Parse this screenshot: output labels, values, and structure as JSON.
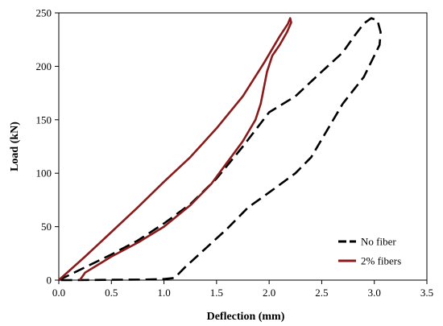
{
  "chart_data": {
    "type": "line",
    "title": "",
    "xlabel": "Deflection (mm)",
    "ylabel": "Load (kN)",
    "xlim": [
      0,
      3.5
    ],
    "ylim": [
      0,
      250
    ],
    "x_ticks": [
      "0.0",
      "0.5",
      "1.0",
      "1.5",
      "2.0",
      "2.5",
      "3.0",
      "3.5"
    ],
    "y_ticks": [
      "0",
      "50",
      "100",
      "150",
      "200",
      "250"
    ],
    "grid": false,
    "legend_position": "bottom-right",
    "series": [
      {
        "name": "No fiber",
        "color": "#000000",
        "style": "dashed",
        "points": [
          [
            0.0,
            0
          ],
          [
            0.25,
            12
          ],
          [
            0.5,
            24
          ],
          [
            0.75,
            37
          ],
          [
            1.0,
            53
          ],
          [
            1.25,
            71
          ],
          [
            1.5,
            95
          ],
          [
            1.75,
            125
          ],
          [
            2.0,
            157
          ],
          [
            2.25,
            172
          ],
          [
            2.5,
            195
          ],
          [
            2.7,
            213
          ],
          [
            2.8,
            227
          ],
          [
            2.9,
            240
          ],
          [
            2.97,
            245
          ],
          [
            3.03,
            243
          ],
          [
            3.06,
            232
          ],
          [
            3.05,
            220
          ],
          [
            2.9,
            190
          ],
          [
            2.7,
            165
          ],
          [
            2.55,
            140
          ],
          [
            2.4,
            115
          ],
          [
            2.25,
            100
          ],
          [
            2.0,
            82
          ],
          [
            1.8,
            68
          ],
          [
            1.6,
            48
          ],
          [
            1.4,
            30
          ],
          [
            1.2,
            12
          ],
          [
            1.1,
            2
          ],
          [
            1.0,
            1
          ],
          [
            0.8,
            0.5
          ],
          [
            0.5,
            0.3
          ],
          [
            0.25,
            0.1
          ],
          [
            0.0,
            0
          ]
        ]
      },
      {
        "name": "2% fibers",
        "color": "#8B1A1A",
        "style": "solid",
        "points": [
          [
            0.0,
            0
          ],
          [
            0.25,
            22
          ],
          [
            0.5,
            45
          ],
          [
            0.75,
            68
          ],
          [
            1.0,
            92
          ],
          [
            1.25,
            115
          ],
          [
            1.5,
            142
          ],
          [
            1.75,
            172
          ],
          [
            1.95,
            203
          ],
          [
            2.1,
            228
          ],
          [
            2.18,
            240
          ],
          [
            2.2,
            245
          ],
          [
            2.21,
            241
          ],
          [
            2.17,
            232
          ],
          [
            2.1,
            220
          ],
          [
            2.03,
            210
          ],
          [
            1.98,
            195
          ],
          [
            1.92,
            165
          ],
          [
            1.87,
            150
          ],
          [
            1.75,
            130
          ],
          [
            1.6,
            110
          ],
          [
            1.45,
            90
          ],
          [
            1.25,
            70
          ],
          [
            1.0,
            50
          ],
          [
            0.75,
            35
          ],
          [
            0.5,
            22
          ],
          [
            0.35,
            13
          ],
          [
            0.25,
            7
          ],
          [
            0.2,
            0
          ]
        ]
      }
    ]
  }
}
